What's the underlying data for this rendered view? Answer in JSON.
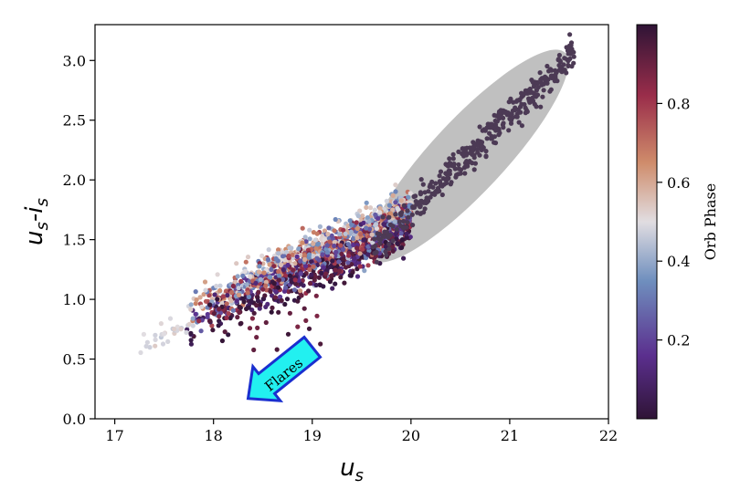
{
  "chart_data": {
    "type": "scatter",
    "xlabel_main": "u",
    "xlabel_sub": "s",
    "ylabel_main_1": "u",
    "ylabel_sub_1": "s",
    "ylabel_sep": "-",
    "ylabel_main_2": "i",
    "ylabel_sub_2": "s",
    "xlim": [
      16.8,
      22.0
    ],
    "ylim": [
      0.0,
      3.3
    ],
    "xticks": [
      17,
      18,
      19,
      20,
      21,
      22
    ],
    "yticks": [
      0.0,
      0.5,
      1.0,
      1.5,
      2.0,
      2.5,
      3.0
    ],
    "ytick_labels": [
      "0.0",
      "0.5",
      "1.0",
      "1.5",
      "2.0",
      "2.5",
      "3.0"
    ],
    "grid": false,
    "colorbar": {
      "label": "Orb Phase",
      "range": [
        0.0,
        1.0
      ],
      "ticks": [
        0.2,
        0.4,
        0.6,
        0.8
      ],
      "tick_labels": [
        "0.2",
        "0.4",
        "0.6",
        "0.8"
      ],
      "colormap": "twilight_shifted",
      "stops": [
        "#2f1436",
        "#5b2f8e",
        "#6f8fbe",
        "#e1dde1",
        "#cf8c6b",
        "#9a2d4a",
        "#2f1436"
      ]
    },
    "series": [
      {
        "description_color": "#4c3a55",
        "region": "quiescent band",
        "x_range": [
          19.6,
          21.7
        ],
        "y_range": [
          1.4,
          3.13
        ]
      },
      {
        "region": "main cloud colored by phase",
        "x_range": [
          17.6,
          20.0
        ],
        "y_range": [
          0.45,
          2.25
        ]
      }
    ],
    "ellipse": {
      "center": [
        20.58,
        2.2
      ],
      "color": "#c0c0c0"
    },
    "annotation": {
      "text": "Flares",
      "tail": [
        19.0,
        0.6
      ],
      "head": [
        18.35,
        0.17
      ],
      "fill": "#22f0f0",
      "edge": "#1a2fcf"
    }
  }
}
